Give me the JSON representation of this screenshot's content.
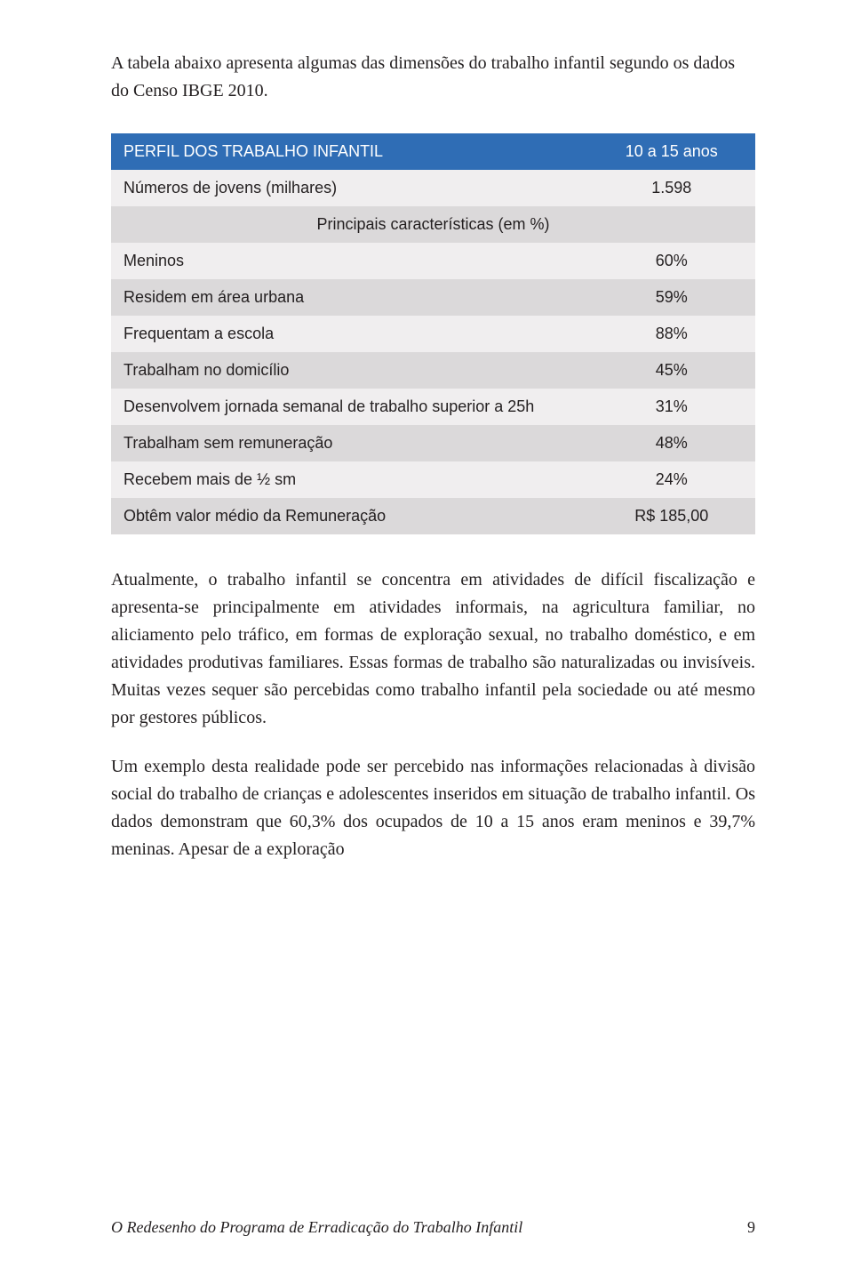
{
  "intro": "A tabela abaixo apresenta algumas das dimensões do trabalho infantil segundo os dados do Censo IBGE 2010.",
  "table": {
    "header_label": "PERFIL DOS TRABALHO INFANTIL",
    "header_value": "10 a 15 anos",
    "sub_label": "Números de jovens (milhares)",
    "sub_value": "1.598",
    "section_label": "Principais características (em %)",
    "rows": [
      {
        "label": "Meninos",
        "value": "60%"
      },
      {
        "label": "Residem em área urbana",
        "value": "59%"
      },
      {
        "label": "Frequentam a escola",
        "value": "88%"
      },
      {
        "label": "Trabalham no domicílio",
        "value": "45%"
      },
      {
        "label": "Desenvolvem jornada semanal de trabalho superior a 25h",
        "value": "31%"
      },
      {
        "label": "Trabalham sem remuneração",
        "value": "48%"
      },
      {
        "label": "Recebem mais de ½ sm",
        "value": "24%"
      },
      {
        "label": "Obtêm valor médio da Remuneração",
        "value": "R$ 185,00"
      }
    ],
    "colors": {
      "header_bg": "#2f6db5",
      "header_fg": "#ffffff",
      "row_light": "#f0eeef",
      "row_dark": "#dbd9da",
      "text": "#231f20"
    }
  },
  "paragraphs": [
    "Atualmente, o trabalho infantil se concentra em atividades de difícil fiscalização e apresenta-se principalmente em atividades informais, na agricultura familiar, no aliciamento pelo tráfico, em formas de exploração sexual, no trabalho doméstico, e em atividades produtivas familiares. Essas formas de trabalho são naturalizadas ou invisíveis. Muitas vezes sequer são percebidas como trabalho infantil pela sociedade ou até mesmo por gestores públicos.",
    "Um exemplo desta realidade pode ser percebido nas informações relacionadas à divisão social do trabalho de crianças e adolescentes inseridos em situação de trabalho infantil. Os dados demonstram que 60,3% dos ocupados de 10 a 15 anos eram meninos e 39,7% meninas. Apesar de a exploração"
  ],
  "footer": {
    "title": "O Redesenho do Programa de Erradicação do Trabalho Infantil",
    "page": "9"
  }
}
